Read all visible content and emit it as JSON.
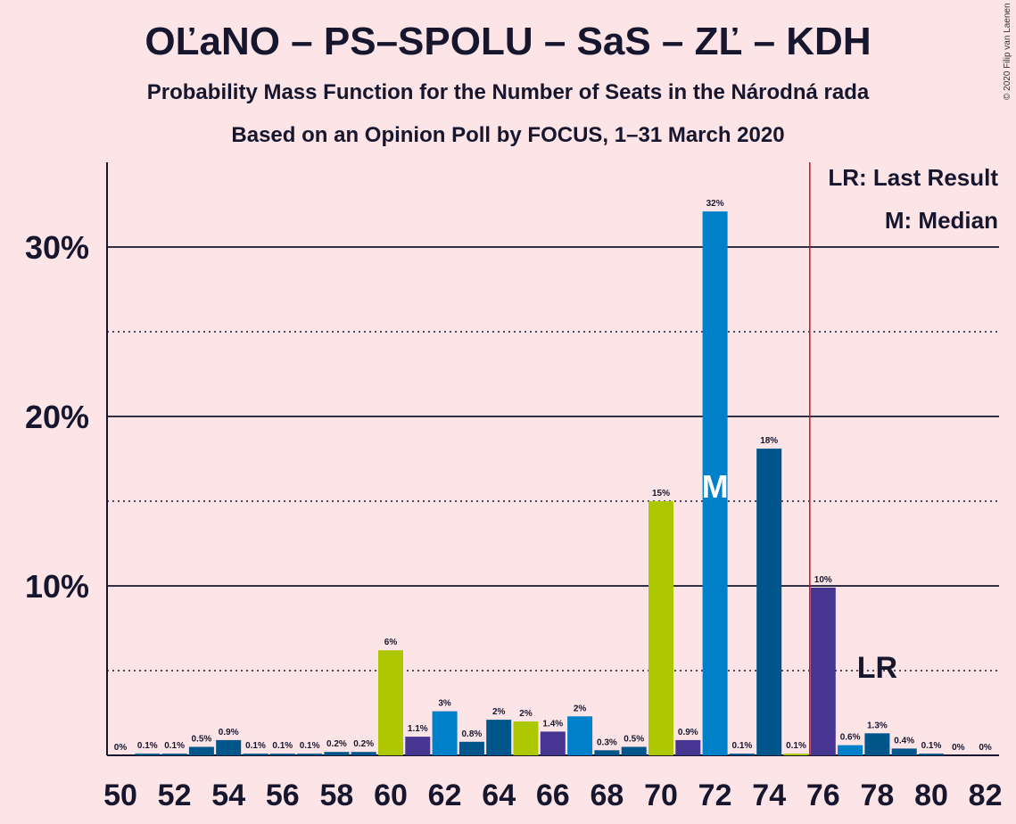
{
  "header": {
    "title": "OĽaNO – PS–SPOLU – SaS – ZĽ – KDH",
    "subtitle": "Probability Mass Function for the Number of Seats in the Národná rada",
    "subtitle2": "Based on an Opinion Poll by FOCUS, 1–31 March 2020",
    "copyright": "© 2020 Filip van Laenen"
  },
  "legend": {
    "last_result": "LR: Last Result",
    "median": "M: Median"
  },
  "chart_data": {
    "type": "bar",
    "x": [
      50,
      51,
      52,
      53,
      54,
      55,
      56,
      57,
      58,
      59,
      60,
      61,
      62,
      63,
      64,
      65,
      66,
      67,
      68,
      69,
      70,
      71,
      72,
      73,
      74,
      75,
      76,
      77,
      78,
      79,
      80,
      81,
      82
    ],
    "values": [
      0,
      0.1,
      0.1,
      0.5,
      0.9,
      0.1,
      0.1,
      0.1,
      0.2,
      0.2,
      6.2,
      1.1,
      2.6,
      0.8,
      2.1,
      2.0,
      1.4,
      2.3,
      0.3,
      0.5,
      15.0,
      0.9,
      32.1,
      0.1,
      18.1,
      0.1,
      9.9,
      0.6,
      1.3,
      0.4,
      0.1,
      0,
      0
    ],
    "data_labels": [
      "0%",
      "0.1%",
      "0.1%",
      "0.5%",
      "0.9%",
      "0.1%",
      "0.1%",
      "0.1%",
      "0.2%",
      "0.2%",
      "6%",
      "1.1%",
      "3%",
      "0.8%",
      "2%",
      "2%",
      "1.4%",
      "2%",
      "0.3%",
      "0.5%",
      "15%",
      "0.9%",
      "32%",
      "0.1%",
      "18%",
      "0.1%",
      "10%",
      "0.6%",
      "1.3%",
      "0.4%",
      "0.1%",
      "0%",
      "0%"
    ],
    "bar_colors": [
      "#00558a",
      "#00558a",
      "#00558a",
      "#00558a",
      "#00558a",
      "#00558a",
      "#00558a",
      "#00558a",
      "#00558a",
      "#00558a",
      "#aec800",
      "#463591",
      "#0080c8",
      "#00558a",
      "#00558a",
      "#aec800",
      "#463591",
      "#0080c8",
      "#00558a",
      "#00558a",
      "#aec800",
      "#463591",
      "#0080c8",
      "#00558a",
      "#00558a",
      "#aec800",
      "#463591",
      "#0080c8",
      "#00558a",
      "#00558a",
      "#00558a",
      "#00558a",
      "#00558a"
    ],
    "x_ticks": [
      "50",
      "52",
      "54",
      "56",
      "58",
      "60",
      "62",
      "64",
      "66",
      "68",
      "70",
      "72",
      "74",
      "76",
      "78",
      "80",
      "82"
    ],
    "y_ticks": [
      "10%",
      "20%",
      "30%"
    ],
    "y_tick_values": [
      10,
      20,
      30
    ],
    "ylim": [
      0,
      35
    ],
    "median_seat": 72,
    "median_label": "M",
    "last_result_seat": 78,
    "last_result_label": "LR",
    "majority_line_seat": 76,
    "colors": {
      "background": "#fde4e6",
      "text": "#16162e",
      "majority_line": "#c8102e",
      "median_text": "#ffffff"
    }
  }
}
